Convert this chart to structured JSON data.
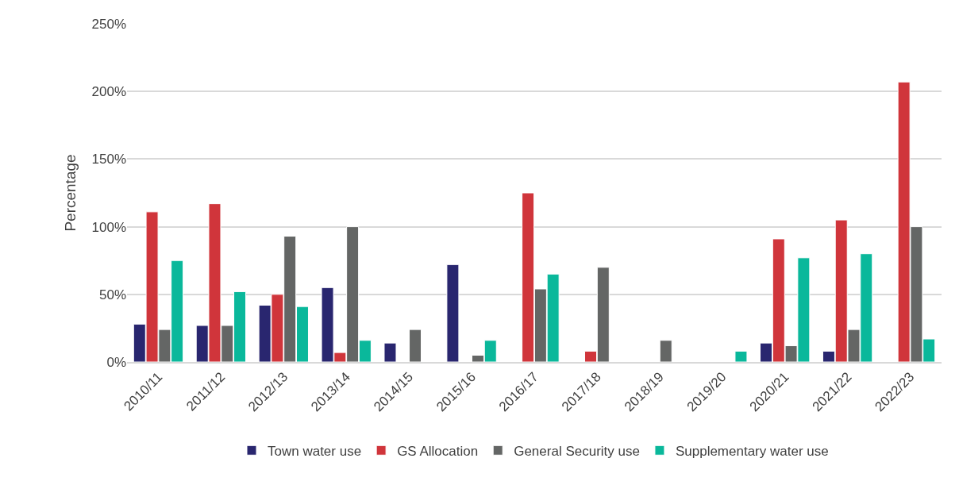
{
  "chart_data": {
    "type": "bar",
    "ylabel": "Percentage",
    "categories": [
      "2010/11",
      "2011/12",
      "2012/13",
      "2013/14",
      "2014/15",
      "2015/16",
      "2016/17",
      "2017/18",
      "2018/19",
      "2019/20",
      "2020/21",
      "2021/22",
      "2022/23"
    ],
    "series": [
      {
        "name": "Town water use",
        "color": "#29266f",
        "values": [
          28,
          27,
          42,
          55,
          14,
          72,
          null,
          null,
          null,
          null,
          14,
          8,
          null
        ]
      },
      {
        "name": "GS Allocation",
        "color": "#d0353b",
        "values": [
          111,
          117,
          50,
          7,
          null,
          null,
          125,
          8,
          null,
          null,
          91,
          105,
          207
        ]
      },
      {
        "name": "General Security use",
        "color": "#646665",
        "values": [
          24,
          27,
          93,
          100,
          24,
          5,
          54,
          70,
          16,
          null,
          12,
          24,
          100
        ]
      },
      {
        "name": "Supplementary water use",
        "color": "#0ab89b",
        "values": [
          75,
          52,
          41,
          16,
          null,
          16,
          65,
          null,
          null,
          8,
          77,
          80,
          17
        ]
      }
    ],
    "ylim": [
      0,
      250
    ],
    "yticks": [
      {
        "value": 0,
        "label": "0%"
      },
      {
        "value": 50,
        "label": "50%"
      },
      {
        "value": 100,
        "label": "100%"
      },
      {
        "value": 150,
        "label": "150%"
      },
      {
        "value": 200,
        "label": "200%"
      },
      {
        "value": 250,
        "label": "250%"
      }
    ],
    "grid": "y",
    "legend": "bottom"
  }
}
